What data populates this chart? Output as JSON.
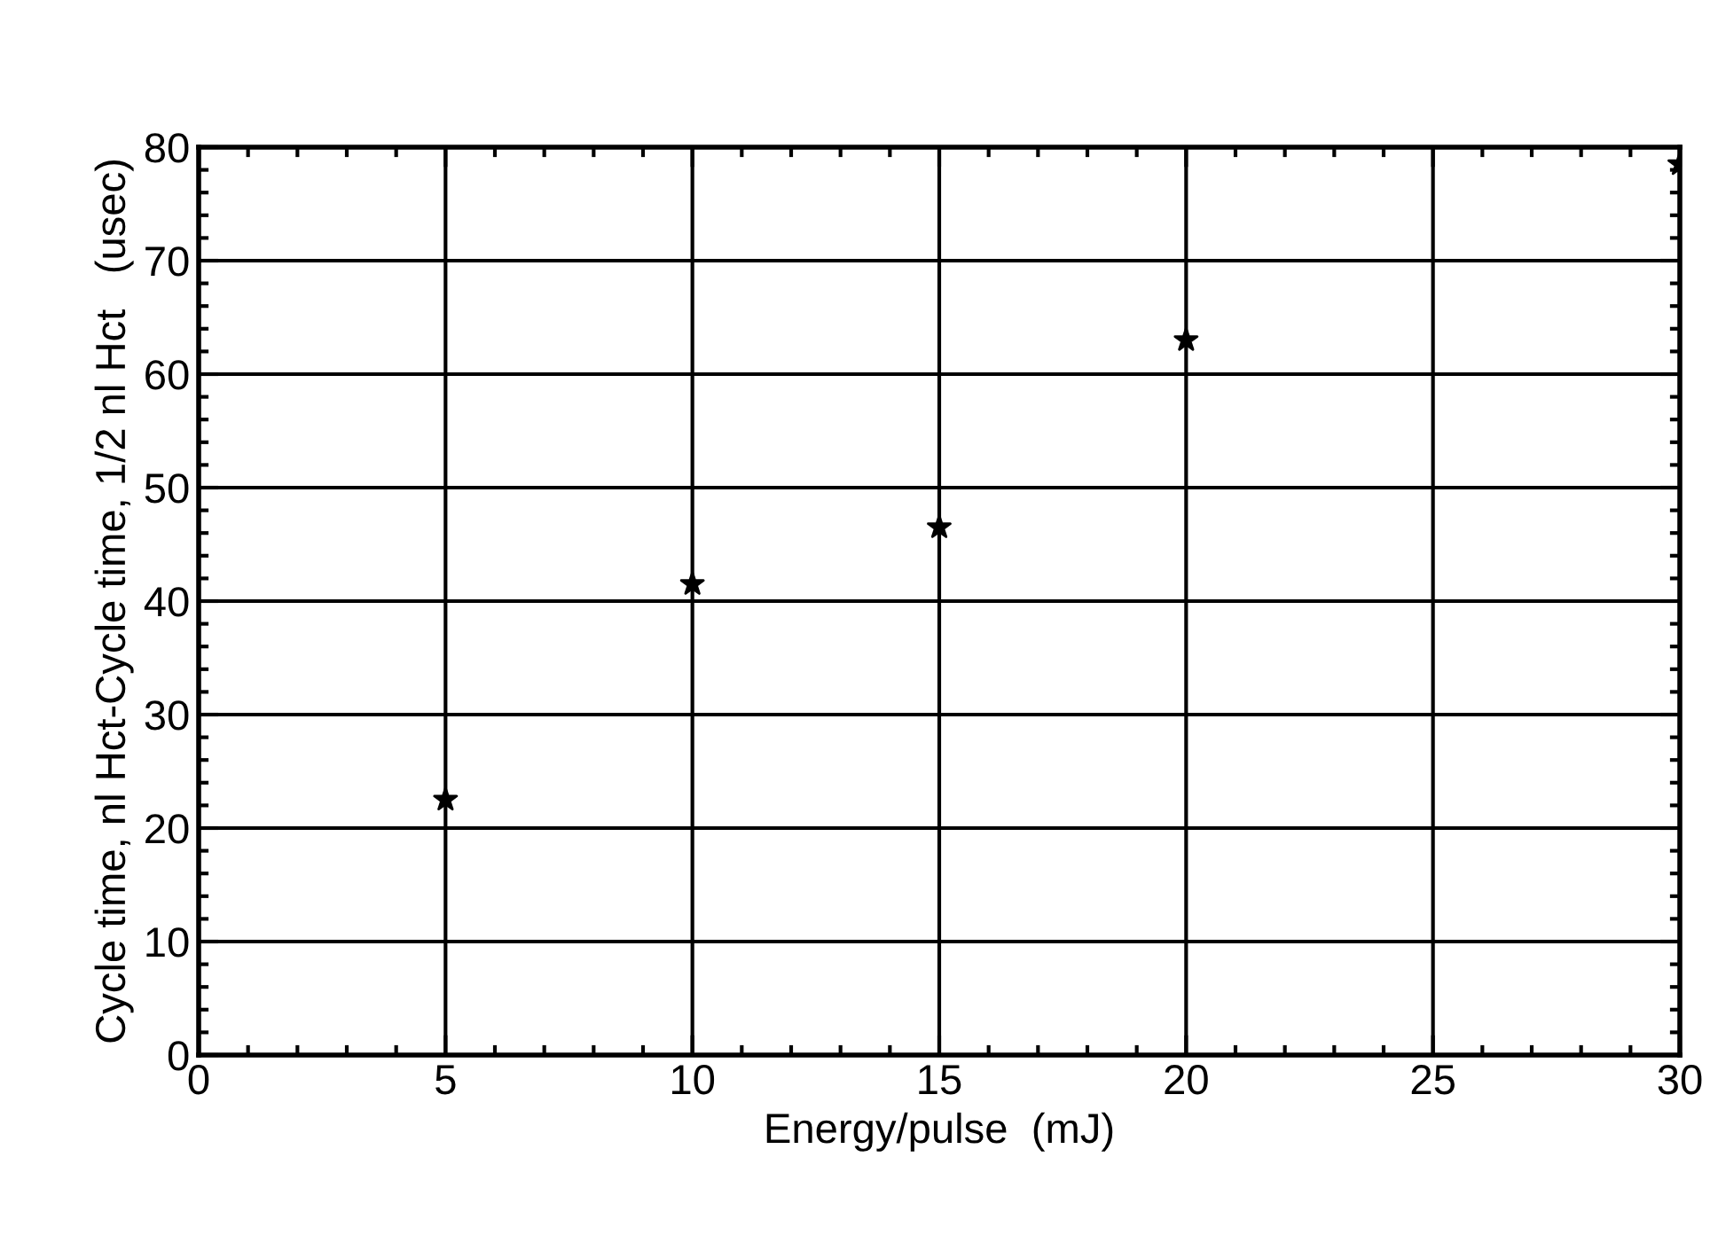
{
  "chart_data": {
    "type": "scatter",
    "xlabel": "Energy/pulse  (mJ)",
    "ylabel": "Cycle time, nl Hct-Cycle time, 1/2 nl Hct   (usec)",
    "x": [
      5,
      10,
      15,
      20,
      30
    ],
    "series": [
      {
        "color": "#000000",
        "values": [
          22.5,
          41.5,
          46.5,
          63,
          78.5
        ]
      }
    ],
    "xlim": [
      0,
      30
    ],
    "xticks": [
      0,
      5,
      10,
      15,
      20,
      25,
      30
    ],
    "ylim": [
      0,
      80
    ],
    "yticks": [
      0,
      10,
      20,
      30,
      40,
      50,
      60,
      70,
      80
    ],
    "grid": true,
    "marker": "star"
  }
}
